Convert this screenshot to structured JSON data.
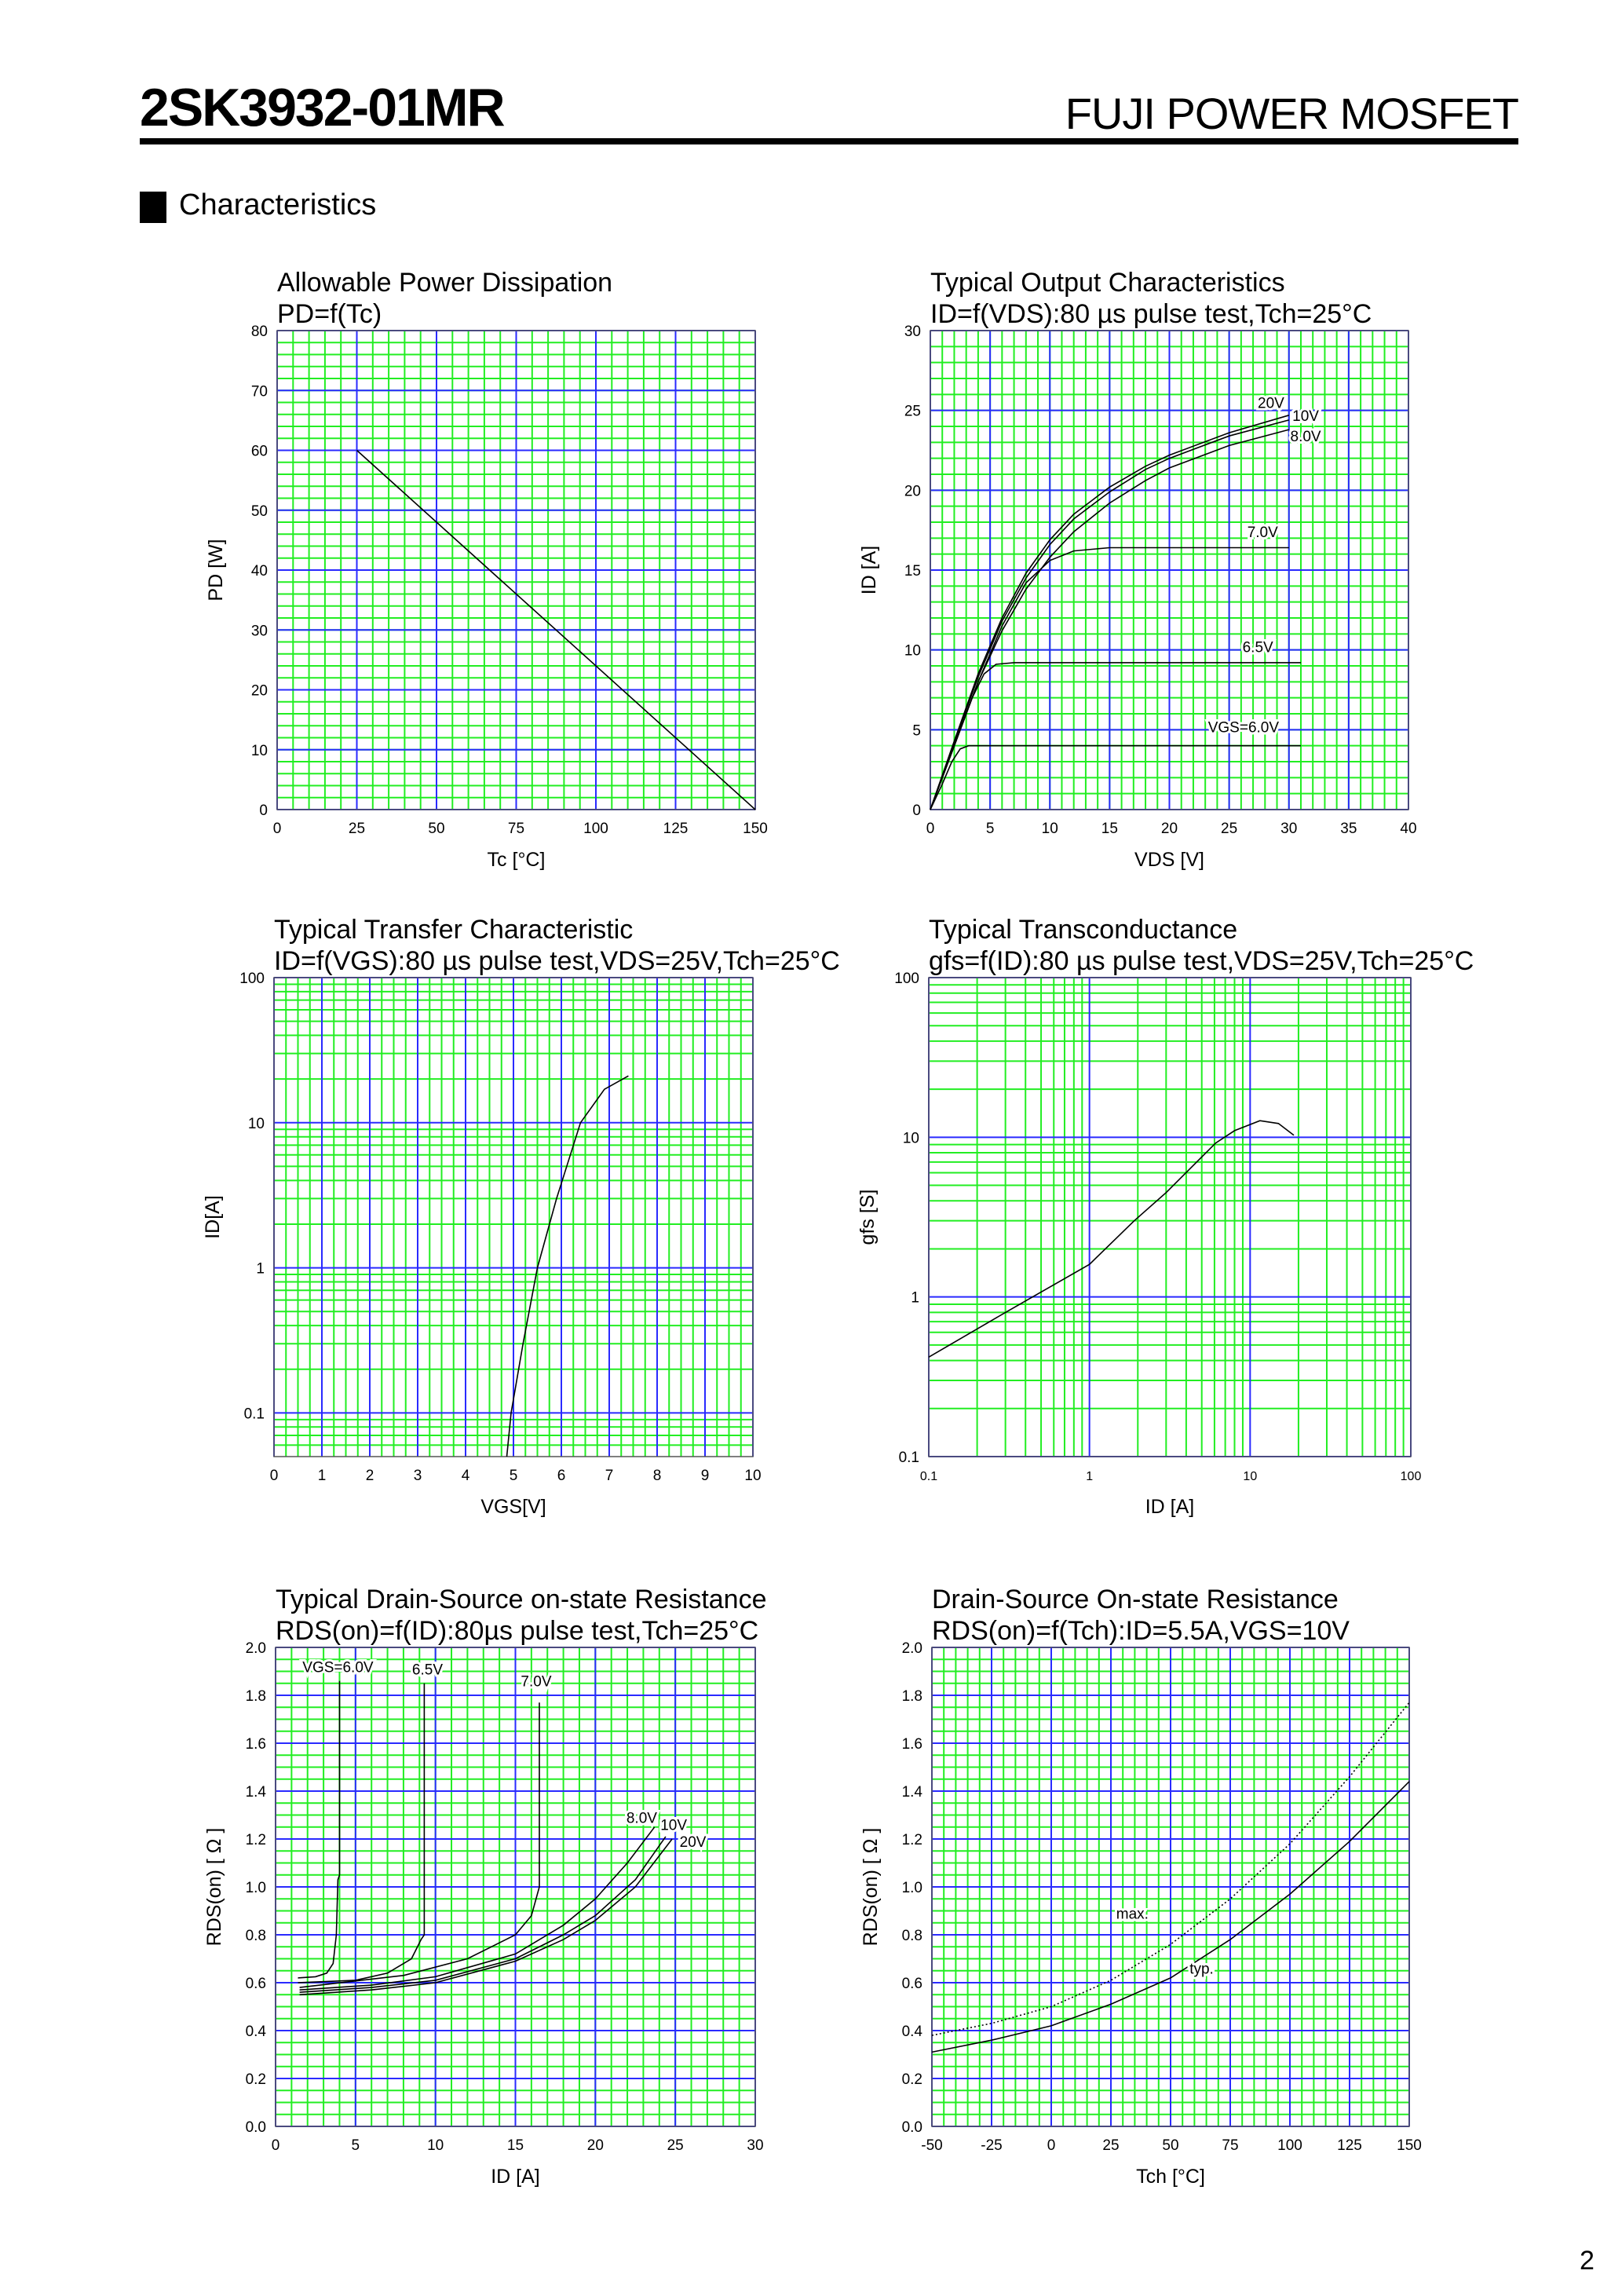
{
  "header": {
    "part_number": "2SK3932-01MR",
    "brand": "FUJI POWER MOSFET"
  },
  "section": {
    "title": "Characteristics"
  },
  "page_number": "2",
  "colors": {
    "minor_grid": "#22ee22",
    "major_grid": "#2a2aff",
    "curve": "#000000"
  },
  "chart_data": [
    {
      "type": "line",
      "title": "Allowable Power Dissipation",
      "subtitle": "PD=f(Tc)",
      "xlabel": "Tc [°C]",
      "ylabel": "PD [W]",
      "xscale": "linear",
      "yscale": "linear",
      "xlim": [
        0,
        150
      ],
      "ylim": [
        0,
        80
      ],
      "grid": true,
      "xticks": [
        "0",
        "25",
        "50",
        "75",
        "100",
        "125",
        "150"
      ],
      "yticks": [
        "0",
        "10",
        "20",
        "30",
        "40",
        "50",
        "60",
        "70",
        "80"
      ],
      "series": [
        {
          "points": [
            [
              25,
              60
            ],
            [
              150,
              0
            ]
          ]
        }
      ]
    },
    {
      "type": "line",
      "title": "Typical Output Characteristics",
      "subtitle": "ID=f(VDS):80 µs pulse test,Tch=25°C",
      "xlabel": "VDS [V]",
      "ylabel": "ID [A]",
      "xscale": "linear",
      "yscale": "linear",
      "xlim": [
        0,
        40
      ],
      "ylim": [
        0,
        30
      ],
      "grid": true,
      "xticks": [
        "0",
        "5",
        "10",
        "15",
        "20",
        "25",
        "30",
        "35",
        "40"
      ],
      "yticks": [
        "0",
        "5",
        "10",
        "15",
        "20",
        "25",
        "30"
      ],
      "series": [
        {
          "name": "VGS=6.0V",
          "label_at": [
            26.2,
            5.2
          ],
          "points": [
            [
              0,
              0
            ],
            [
              1,
              1.6
            ],
            [
              1.8,
              3
            ],
            [
              2.5,
              3.8
            ],
            [
              3.2,
              4
            ],
            [
              31,
              4
            ]
          ]
        },
        {
          "name": "6.5V",
          "label_at": [
            27.4,
            10.2
          ],
          "points": [
            [
              0,
              0
            ],
            [
              2,
              4
            ],
            [
              3.5,
              7
            ],
            [
              4.5,
              8.5
            ],
            [
              5.5,
              9.1
            ],
            [
              7,
              9.2
            ],
            [
              31,
              9.2
            ]
          ]
        },
        {
          "name": "7.0V",
          "label_at": [
            27.8,
            17.4
          ],
          "points": [
            [
              0,
              0
            ],
            [
              2,
              4
            ],
            [
              4,
              8
            ],
            [
              6,
              11.5
            ],
            [
              8,
              14.2
            ],
            [
              10,
              15.6
            ],
            [
              12,
              16.2
            ],
            [
              15,
              16.4
            ],
            [
              30,
              16.4
            ]
          ]
        },
        {
          "name": "8.0V",
          "label_at": [
            31.4,
            23.4
          ],
          "points": [
            [
              0,
              0
            ],
            [
              2,
              4
            ],
            [
              4,
              8
            ],
            [
              6,
              11.2
            ],
            [
              8,
              13.8
            ],
            [
              10,
              15.8
            ],
            [
              12,
              17.4
            ],
            [
              15,
              19.2
            ],
            [
              18,
              20.6
            ],
            [
              20,
              21.4
            ],
            [
              25,
              22.8
            ],
            [
              30,
              23.8
            ]
          ]
        },
        {
          "name": "10V",
          "label_at": [
            31.4,
            24.7
          ],
          "points": [
            [
              0,
              0
            ],
            [
              2,
              4.2
            ],
            [
              4,
              8.3
            ],
            [
              6,
              11.8
            ],
            [
              8,
              14.5
            ],
            [
              10,
              16.6
            ],
            [
              12,
              18.2
            ],
            [
              15,
              19.9
            ],
            [
              18,
              21.3
            ],
            [
              20,
              22
            ],
            [
              25,
              23.4
            ],
            [
              30,
              24.4
            ]
          ]
        },
        {
          "name": "20V",
          "label_at": [
            28.5,
            25.5
          ],
          "points": [
            [
              0,
              0
            ],
            [
              2,
              4.3
            ],
            [
              4,
              8.5
            ],
            [
              6,
              12
            ],
            [
              8,
              14.8
            ],
            [
              10,
              16.9
            ],
            [
              12,
              18.5
            ],
            [
              15,
              20.2
            ],
            [
              18,
              21.5
            ],
            [
              20,
              22.2
            ],
            [
              25,
              23.6
            ],
            [
              30,
              24.7
            ]
          ]
        }
      ]
    },
    {
      "type": "line",
      "title": "Typical Transfer Characteristic",
      "subtitle": "ID=f(VGS):80 µs pulse test,VDS=25V,Tch=25°C",
      "xlabel": "VGS[V]",
      "ylabel": "ID[A]",
      "xscale": "linear",
      "yscale": "log",
      "xlim": [
        0,
        10
      ],
      "ylim": [
        0.05,
        100
      ],
      "grid": true,
      "xticks": [
        "0",
        "1",
        "2",
        "3",
        "4",
        "5",
        "6",
        "7",
        "8",
        "9",
        "10"
      ],
      "yticks": [
        "0.1",
        "1",
        "10",
        "100"
      ],
      "series": [
        {
          "points": [
            [
              4.86,
              0.05
            ],
            [
              4.95,
              0.1
            ],
            [
              5.2,
              0.3
            ],
            [
              5.5,
              1
            ],
            [
              5.9,
              3
            ],
            [
              6.4,
              10
            ],
            [
              6.9,
              17
            ],
            [
              7.4,
              21
            ]
          ]
        }
      ]
    },
    {
      "type": "line",
      "title": "Typical Transconductance",
      "subtitle": "gfs=f(ID):80 µs pulse test,VDS=25V,Tch=25°C",
      "xlabel": "ID [A]",
      "ylabel": "gfs [S]",
      "xscale": "log",
      "yscale": "log",
      "xlim": [
        0.1,
        100
      ],
      "ylim": [
        0.1,
        100
      ],
      "grid": true,
      "xticks": [
        "0.1",
        "1",
        "10",
        "100"
      ],
      "yticks": [
        "0.1",
        "1",
        "10",
        "100"
      ],
      "series": [
        {
          "points": [
            [
              0.1,
              0.42
            ],
            [
              0.3,
              0.8
            ],
            [
              1,
              1.6
            ],
            [
              1.9,
              3.0
            ],
            [
              3,
              4.5
            ],
            [
              6.1,
              9.2
            ],
            [
              8,
              11
            ],
            [
              11.5,
              12.7
            ],
            [
              15,
              12.2
            ],
            [
              18.7,
              10.3
            ]
          ]
        }
      ]
    },
    {
      "type": "line",
      "title": "Typical Drain-Source on-state Resistance",
      "subtitle": "RDS(on)=f(ID):80µs pulse test,Tch=25°C",
      "xlabel": "ID [A]",
      "ylabel": "RDS(on) [ Ω ]",
      "xscale": "linear",
      "yscale": "linear",
      "xlim": [
        0,
        30
      ],
      "ylim": [
        0,
        2
      ],
      "grid": true,
      "xticks": [
        "0",
        "5",
        "10",
        "15",
        "20",
        "25",
        "30"
      ],
      "yticks": [
        "0.0",
        "0.2",
        "0.4",
        "0.6",
        "0.8",
        "1.0",
        "1.2",
        "1.4",
        "1.6",
        "1.8",
        "2.0"
      ],
      "series": [
        {
          "name": "VGS=6.0V",
          "label_at": [
            3.9,
            1.92
          ],
          "points": [
            [
              1.4,
              0.62
            ],
            [
              2.5,
              0.625
            ],
            [
              3.2,
              0.64
            ],
            [
              3.6,
              0.68
            ],
            [
              3.8,
              0.8
            ],
            [
              3.9,
              1.03
            ],
            [
              4,
              1.05
            ],
            [
              4,
              1.86
            ]
          ]
        },
        {
          "name": "6.5V",
          "label_at": [
            9.5,
            1.91
          ],
          "points": [
            [
              1.4,
              0.6
            ],
            [
              5,
              0.61
            ],
            [
              7,
              0.64
            ],
            [
              8.5,
              0.7
            ],
            [
              9.1,
              0.78
            ],
            [
              9.3,
              0.8
            ],
            [
              9.3,
              1.85
            ]
          ]
        },
        {
          "name": "7.0V",
          "label_at": [
            16.3,
            1.86
          ],
          "points": [
            [
              1.5,
              0.58
            ],
            [
              8,
              0.63
            ],
            [
              12,
              0.7
            ],
            [
              15,
              0.8
            ],
            [
              16,
              0.88
            ],
            [
              16.5,
              1.0
            ],
            [
              16.5,
              1.77
            ]
          ]
        },
        {
          "name": "8.0V",
          "label_at": [
            22.9,
            1.29
          ],
          "points": [
            [
              1.5,
              0.57
            ],
            [
              6,
              0.59
            ],
            [
              10,
              0.625
            ],
            [
              15,
              0.72
            ],
            [
              18,
              0.84
            ],
            [
              20,
              0.95
            ],
            [
              22,
              1.1
            ],
            [
              23.7,
              1.25
            ]
          ]
        },
        {
          "name": "10V",
          "label_at": [
            24.9,
            1.26
          ],
          "points": [
            [
              1.5,
              0.56
            ],
            [
              6,
              0.58
            ],
            [
              10,
              0.61
            ],
            [
              15,
              0.7
            ],
            [
              18,
              0.8
            ],
            [
              20,
              0.88
            ],
            [
              22.5,
              1.03
            ],
            [
              24.4,
              1.21
            ]
          ]
        },
        {
          "name": "20V",
          "label_at": [
            26.1,
            1.19
          ],
          "points": [
            [
              1.5,
              0.55
            ],
            [
              6,
              0.57
            ],
            [
              10,
              0.6
            ],
            [
              15,
              0.69
            ],
            [
              18,
              0.78
            ],
            [
              20,
              0.86
            ],
            [
              22.5,
              1.0
            ],
            [
              24.8,
              1.2
            ]
          ]
        }
      ]
    },
    {
      "type": "line",
      "title": "Drain-Source On-state Resistance",
      "subtitle": "RDS(on)=f(Tch):ID=5.5A,VGS=10V",
      "xlabel": "Tch [°C]",
      "ylabel": "RDS(on) [ Ω ]",
      "xscale": "linear",
      "yscale": "linear",
      "xlim": [
        -50,
        150
      ],
      "ylim": [
        0,
        2
      ],
      "grid": true,
      "xticks": [
        "-50",
        "-25",
        "0",
        "25",
        "50",
        "75",
        "100",
        "125",
        "150"
      ],
      "yticks": [
        "0.0",
        "0.2",
        "0.4",
        "0.6",
        "0.8",
        "1.0",
        "1.2",
        "1.4",
        "1.6",
        "1.8",
        "2.0"
      ],
      "series": [
        {
          "name": "max.",
          "style": "dotted",
          "label_at": [
            34,
            0.89
          ],
          "points": [
            [
              -50,
              0.38
            ],
            [
              -25,
              0.43
            ],
            [
              0,
              0.5
            ],
            [
              25,
              0.61
            ],
            [
              50,
              0.76
            ],
            [
              75,
              0.95
            ],
            [
              100,
              1.18
            ],
            [
              125,
              1.46
            ],
            [
              150,
              1.77
            ]
          ]
        },
        {
          "name": "typ.",
          "style": "solid",
          "label_at": [
            63,
            0.66
          ],
          "points": [
            [
              -50,
              0.31
            ],
            [
              -25,
              0.36
            ],
            [
              0,
              0.42
            ],
            [
              25,
              0.51
            ],
            [
              50,
              0.62
            ],
            [
              75,
              0.78
            ],
            [
              100,
              0.97
            ],
            [
              125,
              1.19
            ],
            [
              150,
              1.44
            ]
          ]
        }
      ]
    }
  ]
}
